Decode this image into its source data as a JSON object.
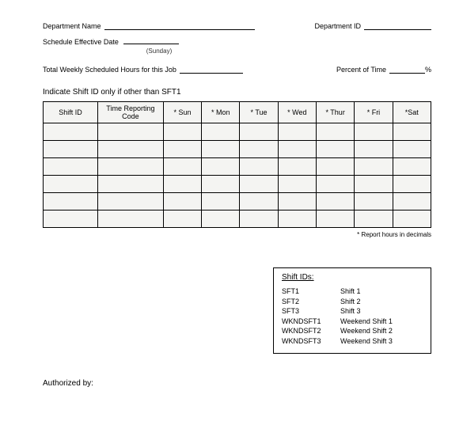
{
  "header": {
    "dept_name_label": "Department Name",
    "dept_id_label": "Department ID",
    "sched_label": "Schedule Effective Date",
    "sched_sub": "(Sunday)",
    "hours_label": "Total Weekly Scheduled Hours for this Job",
    "percent_label": "Percent of Time",
    "percent_suffix": "%"
  },
  "instruction": "Indicate Shift ID only if other than SFT1",
  "table": {
    "headers": [
      "Shift ID",
      "Time Reporting Code",
      "* Sun",
      "* Mon",
      "* Tue",
      "* Wed",
      "* Thur",
      "* Fri",
      "*Sat"
    ],
    "col_widths": [
      "60px",
      "72px",
      "42px",
      "42px",
      "42px",
      "42px",
      "42px",
      "42px",
      "42px"
    ],
    "rows": 6
  },
  "footnote": "* Report hours in decimals",
  "legend": {
    "title": "Shift IDs:",
    "items": [
      {
        "code": "SFT1",
        "desc": "Shift 1"
      },
      {
        "code": "SFT2",
        "desc": "Shift 2"
      },
      {
        "code": "SFT3",
        "desc": "Shift 3"
      },
      {
        "code": "WKNDSFT1",
        "desc": "Weekend Shift 1"
      },
      {
        "code": "WKNDSFT2",
        "desc": "Weekend Shift 2"
      },
      {
        "code": "WKNDSFT3",
        "desc": "Weekend Shift 3"
      }
    ]
  },
  "auth_label": "Authorized by:",
  "style": {
    "line_widths": {
      "dept_name": "190px",
      "dept_id": "85px",
      "sched": "70px",
      "hours": "80px",
      "percent": "45px"
    }
  }
}
